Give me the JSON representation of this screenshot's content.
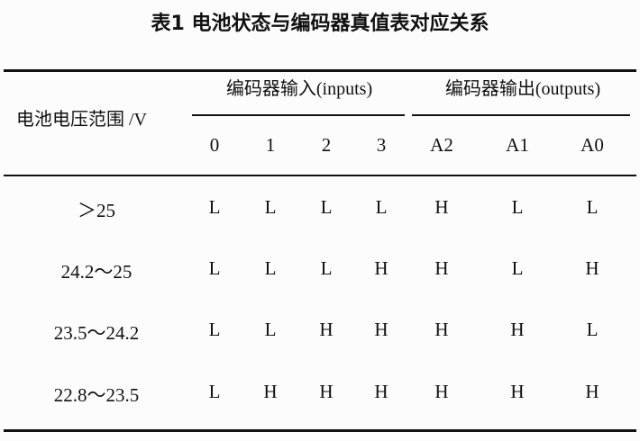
{
  "title": "表1  电池状态与编码器真值表对应关系",
  "header": {
    "row_label": "电池电压范围 /V",
    "group_inputs": "编码器输入(inputs)",
    "group_outputs": "编码器输出(outputs)",
    "columns": [
      "0",
      "1",
      "2",
      "3",
      "A2",
      "A1",
      "A0"
    ]
  },
  "rows": [
    {
      "range": "＞25",
      "values": [
        "L",
        "L",
        "L",
        "L",
        "H",
        "L",
        "L"
      ]
    },
    {
      "range": "24.2～25",
      "values": [
        "L",
        "L",
        "L",
        "H",
        "H",
        "L",
        "H"
      ]
    },
    {
      "range": "23.5～24.2",
      "values": [
        "L",
        "L",
        "H",
        "H",
        "H",
        "H",
        "L"
      ]
    },
    {
      "range": "22.8～23.5",
      "values": [
        "L",
        "H",
        "H",
        "H",
        "H",
        "H",
        "H"
      ]
    }
  ]
}
